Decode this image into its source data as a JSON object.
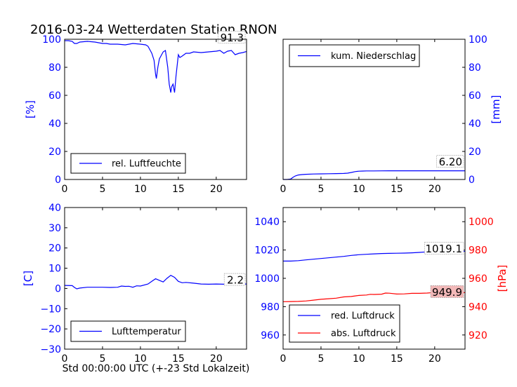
{
  "figure": {
    "title": "2016-03-24 Wetterdaten Station RNON",
    "footer_xlabel": "Std 00:00:00 UTC (+-23 Std Lokalzeit)"
  },
  "colors": {
    "blue": "#0000ff",
    "red": "#ff0000",
    "label_box_fill": "#ffffff",
    "highlight_fill": "#f2b8b8"
  },
  "chart_data": [
    {
      "type": "line",
      "panel": "top-left",
      "ylabel": "[%]",
      "ylim": [
        0,
        100
      ],
      "yticks": [
        0,
        20,
        40,
        60,
        80,
        100
      ],
      "xlim": [
        0,
        24
      ],
      "xticks": [
        0,
        5,
        10,
        15,
        20
      ],
      "legend_position": "lower-left",
      "series": [
        {
          "name": "rel. Luftfeuchte",
          "color": "#0000ff",
          "x": [
            0,
            0.5,
            1,
            1.3,
            1.6,
            2,
            3,
            4,
            5,
            5.5,
            6,
            7,
            8,
            9,
            10,
            10.7,
            11,
            11.5,
            11.8,
            12,
            12.1,
            12.3,
            12.5,
            12.8,
            13,
            13.3,
            13.6,
            13.8,
            14,
            14.1,
            14.3,
            14.5,
            14.7,
            14.9,
            15,
            15.2,
            15.5,
            16,
            16.5,
            17,
            18,
            19,
            20,
            20.5,
            21,
            21.5,
            22,
            22.5,
            23,
            23.5,
            24
          ],
          "y": [
            99,
            99,
            98.5,
            97,
            97,
            98,
            98.5,
            98,
            97,
            97,
            96.5,
            96.5,
            96,
            97,
            96.5,
            96,
            95,
            90,
            85,
            75,
            72,
            80,
            86,
            89,
            91,
            92,
            80,
            68,
            62,
            66,
            68,
            62,
            74,
            84,
            89,
            87,
            88,
            90,
            90,
            91,
            90.5,
            91,
            91.5,
            92,
            90,
            91.5,
            92,
            89,
            90,
            90.5,
            91.3
          ]
        }
      ],
      "last_value_label": "91.3"
    },
    {
      "type": "line",
      "panel": "top-right",
      "ylabel": "[mm]",
      "ylim": [
        0,
        100
      ],
      "yticks": [
        0,
        20,
        40,
        60,
        80,
        100
      ],
      "xlim": [
        0,
        24
      ],
      "xticks": [
        0,
        5,
        10,
        15,
        20
      ],
      "legend_position": "upper-left",
      "series": [
        {
          "name": "kum. Niederschlag",
          "color": "#0000ff",
          "x": [
            0,
            0.5,
            1,
            1.3,
            1.6,
            2,
            2.5,
            3,
            4,
            5,
            6,
            7,
            8,
            8.5,
            9,
            9.5,
            10,
            10.5,
            11,
            12,
            13,
            14,
            15,
            16,
            17,
            18,
            19,
            20,
            21,
            22,
            23,
            24
          ],
          "y": [
            0,
            0,
            0.3,
            1.5,
            2.5,
            3.2,
            3.5,
            3.7,
            3.9,
            4.0,
            4.1,
            4.2,
            4.3,
            4.5,
            5.0,
            5.6,
            5.9,
            6.0,
            6.1,
            6.1,
            6.15,
            6.2,
            6.2,
            6.2,
            6.2,
            6.2,
            6.2,
            6.2,
            6.2,
            6.2,
            6.2,
            6.2
          ]
        }
      ],
      "last_value_label": "6.20"
    },
    {
      "type": "line",
      "panel": "bottom-left",
      "ylabel": "[C]",
      "ylim": [
        -30,
        40
      ],
      "yticks": [
        -30,
        -20,
        -10,
        0,
        10,
        20,
        30,
        40
      ],
      "xlim": [
        0,
        24
      ],
      "xticks": [
        0,
        5,
        10,
        15,
        20
      ],
      "legend_position": "lower-left",
      "series": [
        {
          "name": "Lufttemperatur",
          "color": "#0000ff",
          "x": [
            0,
            1,
            1.3,
            1.6,
            2,
            3,
            4,
            5,
            6,
            7,
            7.5,
            8,
            8.5,
            9,
            9.5,
            10,
            11,
            11.5,
            12,
            12.5,
            13,
            13.5,
            14,
            14.5,
            15,
            15.5,
            16,
            17,
            18,
            19,
            20,
            21,
            22,
            23,
            24
          ],
          "y": [
            1.5,
            1.4,
            0.5,
            -0.2,
            0.2,
            0.6,
            0.6,
            0.6,
            0.5,
            0.6,
            1.2,
            1.0,
            1.1,
            0.6,
            1.3,
            1.2,
            2.2,
            3.5,
            4.8,
            4.0,
            3.2,
            5.0,
            6.5,
            5.5,
            3.5,
            2.8,
            3.0,
            2.6,
            2.2,
            2.1,
            2.2,
            2.1,
            2.1,
            2.2,
            2.2
          ]
        }
      ],
      "last_value_label": "2.2"
    },
    {
      "type": "line",
      "panel": "bottom-right",
      "ylabel_right": "[hPa]",
      "ylim_left": [
        950,
        1050
      ],
      "yticks_left": [
        960,
        980,
        1000,
        1020,
        1040
      ],
      "ylim_right": [
        910,
        1010
      ],
      "yticks_right": [
        920,
        940,
        960,
        980,
        1000
      ],
      "xlim": [
        0,
        24
      ],
      "xticks": [
        0,
        5,
        10,
        15,
        20
      ],
      "legend_position": "lower-left",
      "series": [
        {
          "name": "red. Luftdruck",
          "color": "#0000ff",
          "axis": "left",
          "x": [
            0,
            1,
            2,
            3,
            4,
            5,
            6,
            7,
            8,
            9,
            10,
            11,
            12,
            13,
            14,
            15,
            16,
            17,
            18,
            19,
            20,
            21,
            22,
            23,
            24
          ],
          "y": [
            1012.2,
            1012.2,
            1012.5,
            1013.0,
            1013.5,
            1014.0,
            1014.5,
            1015.0,
            1015.5,
            1016.2,
            1016.7,
            1017.0,
            1017.3,
            1017.5,
            1017.6,
            1017.7,
            1017.8,
            1018.0,
            1018.3,
            1018.7,
            1019.0,
            1019.1,
            1019.1,
            1019.0,
            1019.1
          ]
        },
        {
          "name": "abs. Luftdruck",
          "color": "#ff0000",
          "axis": "right",
          "x": [
            0,
            1,
            2,
            3,
            4,
            5,
            6,
            7,
            8,
            9,
            10,
            11,
            11.5,
            12,
            13,
            13.5,
            14,
            15,
            16,
            17,
            18,
            19,
            20,
            21,
            22,
            23,
            24
          ],
          "y": [
            943.5,
            943.6,
            943.7,
            944.0,
            944.6,
            945.2,
            945.6,
            946.0,
            946.9,
            947.2,
            947.9,
            948.2,
            948.7,
            948.6,
            948.8,
            949.6,
            949.5,
            948.9,
            949.0,
            949.4,
            949.4,
            949.6,
            950.0,
            950.3,
            950.0,
            949.9,
            949.9
          ]
        }
      ],
      "last_value_label_left": "1019.1",
      "last_value_label_right": "949.9"
    }
  ]
}
